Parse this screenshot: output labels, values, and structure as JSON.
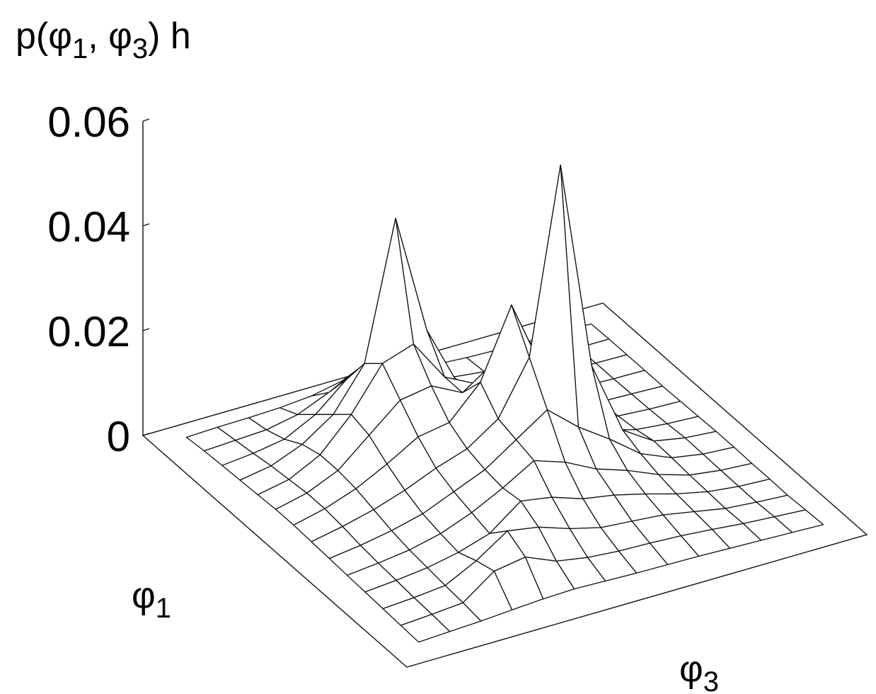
{
  "chart_data": {
    "type": "surface",
    "zlabel": "p(φ1, φ3) h",
    "xlabel": "φ1",
    "ylabel": "φ3",
    "zlim": [
      0,
      0.06
    ],
    "zticks": [
      "0",
      "0.02",
      "0.04",
      "0.06"
    ],
    "z_tick_values": [
      0,
      0.02,
      0.04,
      0.06
    ],
    "grid": false,
    "legend": "none",
    "z": [
      [
        0.0008,
        0.001,
        0.0011,
        0.0013,
        0.0018,
        0.003,
        0.0038,
        0.002,
        0.001,
        0.0006,
        0.0004,
        0.0003,
        0.0003,
        0.0002
      ],
      [
        0.0012,
        0.0015,
        0.0018,
        0.003,
        0.0055,
        0.0085,
        0.006,
        0.0035,
        0.0016,
        0.0009,
        0.0006,
        0.0004,
        0.0003,
        0.0003
      ],
      [
        0.0014,
        0.002,
        0.003,
        0.006,
        0.011,
        0.014,
        0.0095,
        0.005,
        0.0022,
        0.0011,
        0.0007,
        0.0005,
        0.0004,
        0.0003
      ],
      [
        0.0016,
        0.0026,
        0.005,
        0.009,
        0.017,
        0.043,
        0.02,
        0.008,
        0.0035,
        0.0016,
        0.0009,
        0.0006,
        0.0004,
        0.0003
      ],
      [
        0.0018,
        0.003,
        0.006,
        0.012,
        0.02,
        0.022,
        0.014,
        0.011,
        0.005,
        0.0022,
        0.0011,
        0.0007,
        0.0005,
        0.0003
      ],
      [
        0.002,
        0.0034,
        0.006,
        0.011,
        0.016,
        0.017,
        0.014,
        0.018,
        0.009,
        0.004,
        0.0018,
        0.001,
        0.0006,
        0.0004
      ],
      [
        0.002,
        0.0034,
        0.0055,
        0.0085,
        0.012,
        0.013,
        0.019,
        0.032,
        0.018,
        0.008,
        0.003,
        0.0014,
        0.0008,
        0.0005
      ],
      [
        0.0018,
        0.003,
        0.0045,
        0.0065,
        0.009,
        0.011,
        0.015,
        0.025,
        0.06,
        0.02,
        0.006,
        0.0022,
        0.0011,
        0.0006
      ],
      [
        0.0016,
        0.0024,
        0.0035,
        0.005,
        0.0075,
        0.01,
        0.014,
        0.018,
        0.013,
        0.009,
        0.0045,
        0.002,
        0.001,
        0.0006
      ],
      [
        0.0014,
        0.002,
        0.0028,
        0.0042,
        0.0065,
        0.0095,
        0.013,
        0.011,
        0.008,
        0.006,
        0.0035,
        0.0017,
        0.0009,
        0.0005
      ],
      [
        0.0012,
        0.0017,
        0.0024,
        0.0036,
        0.0055,
        0.01,
        0.009,
        0.007,
        0.006,
        0.0045,
        0.0028,
        0.0015,
        0.0008,
        0.0005
      ],
      [
        0.001,
        0.0014,
        0.002,
        0.005,
        0.009,
        0.008,
        0.006,
        0.0045,
        0.004,
        0.0035,
        0.0024,
        0.0013,
        0.0008,
        0.0004
      ],
      [
        0.0008,
        0.0012,
        0.0017,
        0.006,
        0.007,
        0.0045,
        0.0035,
        0.003,
        0.0028,
        0.0025,
        0.002,
        0.0014,
        0.001,
        0.0006
      ],
      [
        0.0006,
        0.0009,
        0.0012,
        0.0016,
        0.002,
        0.0022,
        0.002,
        0.0018,
        0.0017,
        0.0016,
        0.0014,
        0.0012,
        0.001,
        0.0008
      ]
    ]
  }
}
